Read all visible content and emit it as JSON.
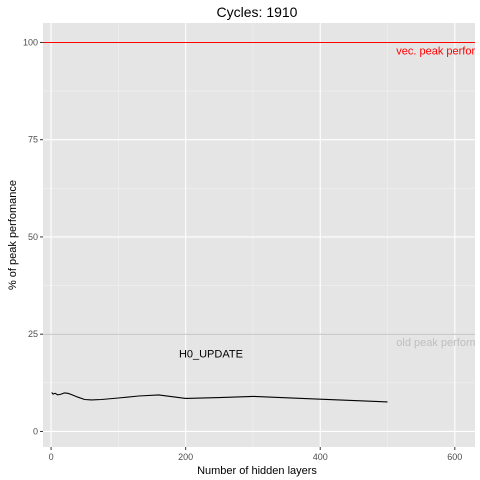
{
  "chart_data": {
    "type": "line",
    "title": "Cycles:  1910",
    "xlabel": "Number of hidden layers",
    "ylabel": "% of peak perfomance",
    "xlim": [
      -12,
      630
    ],
    "ylim": [
      -4,
      105
    ],
    "x_ticks": [
      0,
      200,
      400,
      600
    ],
    "x_tick_labels": [
      "0",
      "200",
      "400",
      "600"
    ],
    "y_ticks": [
      0,
      25,
      50,
      75,
      100
    ],
    "y_tick_labels": [
      "0",
      "25",
      "50",
      "75",
      "100"
    ],
    "grid": true,
    "series": [
      {
        "color": "#000000",
        "x": [
          1,
          3,
          6,
          10,
          15,
          20,
          25,
          30,
          40,
          50,
          60,
          75,
          100,
          130,
          160,
          200,
          250,
          300,
          400,
          500
        ],
        "y": [
          10,
          9.6,
          9.8,
          9.4,
          9.6,
          9.9,
          9.8,
          9.5,
          8.8,
          8.2,
          8.1,
          8.2,
          8.6,
          9.1,
          9.4,
          8.5,
          8.7,
          9.0,
          8.3,
          7.6
        ]
      }
    ],
    "hlines": [
      {
        "y": 100,
        "color": "#ff0000",
        "label": "vec. peak performance"
      },
      {
        "y": 25,
        "color": "#bebebe",
        "label": "old peak performance"
      }
    ],
    "annotations": [
      {
        "text": "H0_UPDATE",
        "x": 300,
        "y": 20
      }
    ]
  }
}
